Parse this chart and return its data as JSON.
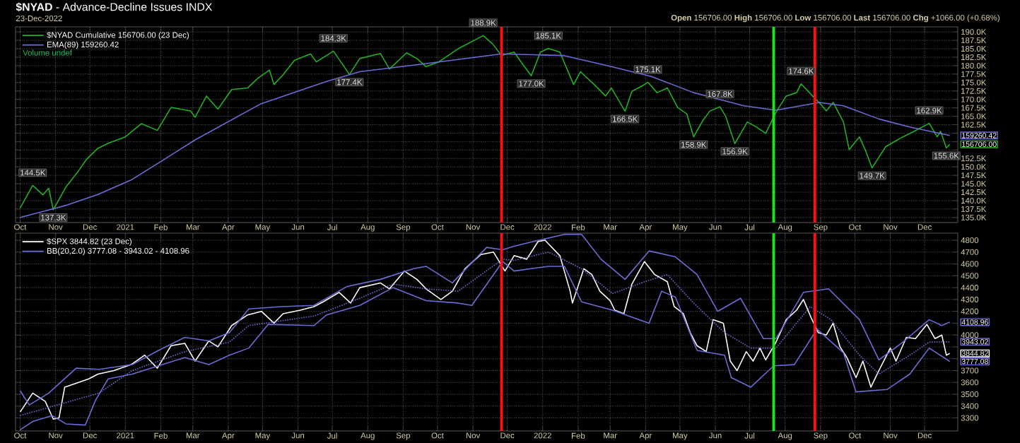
{
  "chart_data": [
    {
      "type": "line",
      "title": "**$NYAD** - Advance-Decline Issues INDX",
      "subtitle": "23-Dec-2022",
      "xlim": [
        "2020-09-27",
        "2022-12-30"
      ],
      "xticks": [
        {
          "value": "2020-10-01",
          "label": "Oct"
        },
        {
          "value": "2020-11-01",
          "label": "Nov"
        },
        {
          "value": "2020-12-01",
          "label": "Dec"
        },
        {
          "value": "2021-01-01",
          "label": "2021"
        },
        {
          "value": "2021-02-01",
          "label": "Feb"
        },
        {
          "value": "2021-03-01",
          "label": "Mar"
        },
        {
          "value": "2021-04-01",
          "label": "Apr"
        },
        {
          "value": "2021-05-01",
          "label": "May"
        },
        {
          "value": "2021-06-01",
          "label": "Jun"
        },
        {
          "value": "2021-07-01",
          "label": "Jul"
        },
        {
          "value": "2021-08-01",
          "label": "Aug"
        },
        {
          "value": "2021-09-01",
          "label": "Sep"
        },
        {
          "value": "2021-10-01",
          "label": "Oct"
        },
        {
          "value": "2021-11-01",
          "label": "Nov"
        },
        {
          "value": "2021-12-01",
          "label": "Dec"
        },
        {
          "value": "2022-01-01",
          "label": "2022"
        },
        {
          "value": "2022-02-01",
          "label": "Feb"
        },
        {
          "value": "2022-03-01",
          "label": "Mar"
        },
        {
          "value": "2022-04-01",
          "label": "Apr"
        },
        {
          "value": "2022-05-01",
          "label": "May"
        },
        {
          "value": "2022-06-01",
          "label": "Jun"
        },
        {
          "value": "2022-07-01",
          "label": "Jul"
        },
        {
          "value": "2022-08-01",
          "label": "Aug"
        },
        {
          "value": "2022-09-01",
          "label": "Sep"
        },
        {
          "value": "2022-10-01",
          "label": "Oct"
        },
        {
          "value": "2022-11-01",
          "label": "Nov"
        },
        {
          "value": "2022-12-01",
          "label": "Dec"
        }
      ],
      "ylim": [
        133.5,
        191.5
      ],
      "yticks": [
        {
          "value": 135,
          "label": "135.0K"
        },
        {
          "value": 137.5,
          "label": "137.5K"
        },
        {
          "value": 140,
          "label": "140.0K"
        },
        {
          "value": 142.5,
          "label": "142.5K"
        },
        {
          "value": 145,
          "label": "145.0K"
        },
        {
          "value": 147.5,
          "label": "147.5K"
        },
        {
          "value": 150,
          "label": "150.0K"
        },
        {
          "value": 152.5,
          "label": "152.5K"
        },
        {
          "value": 155,
          "label": null
        },
        {
          "value": 157.5,
          "label": null
        },
        {
          "value": 160,
          "label": null
        },
        {
          "value": 162.5,
          "label": "162.5K"
        },
        {
          "value": 165,
          "label": "165.0K"
        },
        {
          "value": 167.5,
          "label": "167.5K"
        },
        {
          "value": 170,
          "label": "170.0K"
        },
        {
          "value": 172.5,
          "label": "172.5K"
        },
        {
          "value": 175,
          "label": "175.0K"
        },
        {
          "value": 177.5,
          "label": "177.5K"
        },
        {
          "value": 180,
          "label": "180.0K"
        },
        {
          "value": 182.5,
          "label": "182.5K"
        },
        {
          "value": 185,
          "label": "185.0K"
        },
        {
          "value": 187.5,
          "label": "187.5K"
        },
        {
          "value": 190,
          "label": "190.0K"
        }
      ],
      "grid": true,
      "legend": "top left",
      "series": [
        {
          "name": "$NYAD Cumulative 156706.00 (23 Dec)",
          "color": "#22b022",
          "x": [
            "2020-10-01",
            "2020-10-12",
            "2020-10-21",
            "2020-10-26",
            "2020-10-30",
            "2020-11-10",
            "2020-11-21",
            "2020-11-28",
            "2020-12-08",
            "2020-12-17",
            "2021-01-01",
            "2021-01-15",
            "2021-01-29",
            "2021-02-10",
            "2021-02-27",
            "2021-03-03",
            "2021-03-13",
            "2021-03-23",
            "2021-04-04",
            "2021-04-18",
            "2021-04-27",
            "2021-05-07",
            "2021-05-11",
            "2021-05-19",
            "2021-05-29",
            "2021-06-12",
            "2021-06-17",
            "2021-07-02",
            "2021-07-16",
            "2021-07-25",
            "2021-08-12",
            "2021-08-20",
            "2021-09-04",
            "2021-09-13",
            "2021-09-21",
            "2021-10-02",
            "2021-10-19",
            "2021-11-10",
            "2021-11-18",
            "2021-11-26",
            "2021-12-07",
            "2021-12-15",
            "2021-12-22",
            "2021-12-30",
            "2022-01-06",
            "2022-01-16",
            "2022-01-28",
            "2022-02-03",
            "2022-02-15",
            "2022-02-25",
            "2022-03-02",
            "2022-03-14",
            "2022-03-20",
            "2022-03-29",
            "2022-04-03",
            "2022-04-11",
            "2022-04-20",
            "2022-04-29",
            "2022-05-07",
            "2022-05-13",
            "2022-05-21",
            "2022-05-27",
            "2022-06-05",
            "2022-06-10",
            "2022-06-18",
            "2022-06-29",
            "2022-07-07",
            "2022-07-15",
            "2022-07-24",
            "2022-08-02",
            "2022-08-11",
            "2022-08-15",
            "2022-08-25",
            "2022-09-01",
            "2022-09-06",
            "2022-09-12",
            "2022-09-21",
            "2022-09-26",
            "2022-10-05",
            "2022-10-10",
            "2022-10-16",
            "2022-10-28",
            "2022-11-12",
            "2022-11-21",
            "2022-12-05",
            "2022-12-12",
            "2022-12-15",
            "2022-12-20",
            "2022-12-23"
          ],
          "values": [
            137.8,
            144.5,
            141.7,
            143.7,
            137.3,
            144.0,
            148.8,
            152.2,
            155.5,
            157.0,
            158.9,
            162.8,
            160.8,
            167.6,
            166.6,
            164.7,
            171.0,
            167.1,
            172.9,
            173.4,
            176.3,
            178.7,
            174.4,
            177.3,
            181.6,
            183.5,
            181.1,
            184.3,
            177.4,
            182.1,
            183.6,
            179.0,
            183.8,
            182.1,
            179.7,
            181.1,
            185.0,
            188.9,
            186.5,
            183.0,
            184.0,
            180.2,
            177.0,
            184.0,
            185.1,
            184.0,
            174.4,
            178.2,
            174.4,
            171.0,
            173.4,
            166.5,
            172.4,
            174.0,
            175.1,
            172.0,
            173.4,
            167.6,
            165.7,
            158.9,
            163.7,
            166.5,
            167.8,
            165.0,
            156.9,
            163.3,
            161.8,
            159.9,
            166.2,
            171.0,
            172.0,
            174.6,
            171.0,
            168.6,
            166.6,
            169.1,
            163.3,
            155.1,
            158.9,
            155.1,
            149.7,
            156.0,
            158.9,
            160.4,
            162.9,
            158.9,
            160.5,
            155.6,
            156.7
          ]
        },
        {
          "name": "EMA(89) 159260.42",
          "color": "#6c6cd8",
          "x": [
            "2020-10-01",
            "2020-10-30",
            "2020-11-10",
            "2020-12-08",
            "2021-01-06",
            "2021-02-04",
            "2021-03-03",
            "2021-04-29",
            "2021-06-26",
            "2021-07-25",
            "2021-09-21",
            "2021-11-26",
            "2022-01-19",
            "2022-03-02",
            "2022-04-06",
            "2022-05-13",
            "2022-06-26",
            "2022-07-24",
            "2022-08-31",
            "2022-09-21",
            "2022-10-22",
            "2022-11-18",
            "2022-12-23"
          ],
          "values": [
            135.0,
            137.6,
            138.6,
            141.8,
            146.1,
            152.2,
            158.0,
            168.6,
            175.3,
            178.2,
            180.6,
            183.5,
            183.0,
            179.7,
            176.8,
            172.0,
            168.1,
            166.8,
            169.1,
            168.1,
            164.2,
            161.8,
            159.3
          ]
        }
      ],
      "ref_lines": [
        {
          "axis": "x",
          "value": "2021-11-26",
          "color": "#ff1010"
        },
        {
          "axis": "x",
          "value": "2022-07-22",
          "color": "#20e020"
        },
        {
          "axis": "x",
          "value": "2022-08-27",
          "color": "#ff1010"
        }
      ],
      "annotations": [
        "**Open** 156706.00  **High** 156706.00  **Low** 156706.00  **Last** 156706.00  **Chg** +1066.00 (+0.68%)",
        "Volume undef",
        {
          "text": "144.5K",
          "x": "2020-10-12",
          "y": 144.5
        },
        {
          "text": "137.3K",
          "x": "2020-10-30",
          "y": 137.3
        },
        {
          "text": "184.3K",
          "x": "2021-07-02",
          "y": 184.3
        },
        {
          "text": "177.4K",
          "x": "2021-07-16",
          "y": 177.4
        },
        {
          "text": "188.9K",
          "x": "2021-11-10",
          "y": 188.9
        },
        {
          "text": "177.0K",
          "x": "2021-12-22",
          "y": 177.0
        },
        {
          "text": "185.1K",
          "x": "2022-01-06",
          "y": 185.1
        },
        {
          "text": "166.5K",
          "x": "2022-03-14",
          "y": 166.5
        },
        {
          "text": "175.1K",
          "x": "2022-04-03",
          "y": 175.1
        },
        {
          "text": "158.9K",
          "x": "2022-05-13",
          "y": 158.9
        },
        {
          "text": "167.8K",
          "x": "2022-06-05",
          "y": 167.8
        },
        {
          "text": "156.9K",
          "x": "2022-06-18",
          "y": 156.9
        },
        {
          "text": "174.6K",
          "x": "2022-08-15",
          "y": 174.6
        },
        {
          "text": "149.7K",
          "x": "2022-10-16",
          "y": 149.7
        },
        {
          "text": "162.9K",
          "x": "2022-12-05",
          "y": 162.9
        },
        {
          "text": "155.6K",
          "x": "2022-12-20",
          "y": 155.6
        },
        {
          "text": "159260.42",
          "x": "2022-12-23",
          "y": 159.3
        },
        {
          "text": "156706.00",
          "x": "2022-12-23",
          "y": 156.7
        }
      ]
    },
    {
      "type": "line",
      "xlim": [
        "2020-09-27",
        "2022-12-30"
      ],
      "xticks": [
        {
          "value": "2020-10-01",
          "label": "Oct"
        },
        {
          "value": "2020-11-01",
          "label": "Nov"
        },
        {
          "value": "2020-12-01",
          "label": "Dec"
        },
        {
          "value": "2021-01-01",
          "label": "2021"
        },
        {
          "value": "2021-02-01",
          "label": "Feb"
        },
        {
          "value": "2021-03-01",
          "label": "Mar"
        },
        {
          "value": "2021-04-01",
          "label": "Apr"
        },
        {
          "value": "2021-05-01",
          "label": "May"
        },
        {
          "value": "2021-06-01",
          "label": "Jun"
        },
        {
          "value": "2021-07-01",
          "label": "Jul"
        },
        {
          "value": "2021-08-01",
          "label": "Aug"
        },
        {
          "value": "2021-09-01",
          "label": "Sep"
        },
        {
          "value": "2021-10-01",
          "label": "Oct"
        },
        {
          "value": "2021-11-01",
          "label": "Nov"
        },
        {
          "value": "2021-12-01",
          "label": "Dec"
        },
        {
          "value": "2022-01-01",
          "label": "2022"
        },
        {
          "value": "2022-02-01",
          "label": "Feb"
        },
        {
          "value": "2022-03-01",
          "label": "Mar"
        },
        {
          "value": "2022-04-01",
          "label": "Apr"
        },
        {
          "value": "2022-05-01",
          "label": "May"
        },
        {
          "value": "2022-06-01",
          "label": "Jun"
        },
        {
          "value": "2022-07-01",
          "label": "Jul"
        },
        {
          "value": "2022-08-01",
          "label": "Aug"
        },
        {
          "value": "2022-09-01",
          "label": "Sep"
        },
        {
          "value": "2022-10-01",
          "label": "Oct"
        },
        {
          "value": "2022-11-01",
          "label": "Nov"
        },
        {
          "value": "2022-12-01",
          "label": "Dec"
        }
      ],
      "ylim": [
        3190,
        4860
      ],
      "yticks": [
        3300,
        3400,
        3500,
        3600,
        3700,
        {
          "value": 3800,
          "label": null
        },
        {
          "value": 3900,
          "label": null
        },
        4000,
        {
          "value": 4100,
          "label": null
        },
        4200,
        4300,
        4400,
        4500,
        4600,
        4700,
        4800
      ],
      "grid": true,
      "legend": "top left",
      "series": [
        {
          "name": "$SPX 3844.82 (23 Dec)",
          "color": "#ffffff",
          "x": [
            "2020-10-01",
            "2020-10-12",
            "2020-10-23",
            "2020-10-30",
            "2020-11-04",
            "2020-11-09",
            "2020-11-18",
            "2020-11-30",
            "2020-12-08",
            "2020-12-22",
            "2021-01-06",
            "2021-01-18",
            "2021-01-29",
            "2021-02-10",
            "2021-02-22",
            "2021-03-03",
            "2021-03-15",
            "2021-03-23",
            "2021-04-04",
            "2021-04-18",
            "2021-04-30",
            "2021-05-11",
            "2021-05-19",
            "2021-06-03",
            "2021-06-15",
            "2021-06-23",
            "2021-07-07",
            "2021-07-17",
            "2021-07-25",
            "2021-08-12",
            "2021-08-20",
            "2021-09-02",
            "2021-09-13",
            "2021-09-21",
            "2021-10-04",
            "2021-10-14",
            "2021-10-25",
            "2021-11-08",
            "2021-11-19",
            "2021-11-29",
            "2021-12-07",
            "2021-12-18",
            "2021-12-28",
            "2022-01-03",
            "2022-01-16",
            "2022-01-25",
            "2022-01-27",
            "2022-02-06",
            "2022-02-13",
            "2022-02-20",
            "2022-03-01",
            "2022-03-05",
            "2022-03-13",
            "2022-03-20",
            "2022-03-31",
            "2022-04-09",
            "2022-04-20",
            "2022-04-26",
            "2022-05-04",
            "2022-05-10",
            "2022-05-16",
            "2022-05-24",
            "2022-05-30",
            "2022-06-08",
            "2022-06-14",
            "2022-06-20",
            "2022-06-28",
            "2022-07-04",
            "2022-07-10",
            "2022-07-15",
            "2022-07-24",
            "2022-08-02",
            "2022-08-11",
            "2022-08-17",
            "2022-08-24",
            "2022-08-30",
            "2022-09-06",
            "2022-09-12",
            "2022-09-18",
            "2022-09-24",
            "2022-10-02",
            "2022-10-08",
            "2022-10-15",
            "2022-10-22",
            "2022-11-01",
            "2022-11-06",
            "2022-11-15",
            "2022-11-23",
            "2022-12-03",
            "2022-12-10",
            "2022-12-16",
            "2022-12-20",
            "2022-12-23"
          ],
          "values": [
            3350,
            3510,
            3440,
            3290,
            3300,
            3560,
            3590,
            3630,
            3670,
            3700,
            3750,
            3830,
            3720,
            3910,
            3930,
            3780,
            3950,
            3900,
            4080,
            4170,
            4200,
            4100,
            4180,
            4210,
            4240,
            4280,
            4360,
            4270,
            4400,
            4440,
            4390,
            4540,
            4470,
            4390,
            4300,
            4370,
            4560,
            4680,
            4700,
            4540,
            4670,
            4640,
            4790,
            4800,
            4670,
            4370,
            4270,
            4560,
            4510,
            4370,
            4290,
            4210,
            4180,
            4430,
            4620,
            4510,
            4450,
            4240,
            4180,
            4020,
            3910,
            3860,
            4130,
            4100,
            3780,
            3700,
            3860,
            3780,
            3890,
            3790,
            3940,
            4130,
            4210,
            4300,
            4140,
            4020,
            4000,
            4100,
            3900,
            3810,
            3640,
            3780,
            3560,
            3700,
            3890,
            3780,
            3980,
            3970,
            4090,
            3970,
            4000,
            3830,
            3845
          ]
        },
        {
          "name": "BB(20,2.0) 3777.08 - 3943.02 - 4108.96",
          "color": "#6c6cd8",
          "x": [
            "2020-10-01",
            "2020-10-09",
            "2020-10-26",
            "2020-11-19",
            "2020-12-09",
            "2021-01-07",
            "2021-01-30",
            "2021-02-22",
            "2021-03-15",
            "2021-04-02",
            "2021-04-19",
            "2021-05-17",
            "2021-06-15",
            "2021-07-14",
            "2021-08-12",
            "2021-09-10",
            "2021-09-21",
            "2021-10-14",
            "2021-11-13",
            "2021-11-27",
            "2021-12-07",
            "2021-12-24",
            "2022-01-20",
            "2022-02-04",
            "2022-02-21",
            "2022-03-14",
            "2022-04-04",
            "2022-04-27",
            "2022-05-16",
            "2022-06-03",
            "2022-06-23",
            "2022-07-13",
            "2022-07-24",
            "2022-08-17",
            "2022-09-08",
            "2022-10-05",
            "2022-10-22",
            "2022-11-12",
            "2022-12-05",
            "2022-12-16",
            "2022-12-23"
          ],
          "values": [
            3530,
            3410,
            3510,
            3720,
            3710,
            3750,
            3870,
            3980,
            3950,
            4020,
            4220,
            4240,
            4250,
            4410,
            4470,
            4560,
            4580,
            4440,
            4740,
            4720,
            4750,
            4790,
            4850,
            4850,
            4640,
            4470,
            4710,
            4660,
            4510,
            4200,
            4310,
            3970,
            3970,
            4360,
            4390,
            4130,
            3790,
            3940,
            4130,
            4080,
            4109
          ]
        },
        {
          "color": "#6c6cd8",
          "line_style": "dotted",
          "x": [
            "2020-10-01",
            "2020-11-10",
            "2020-12-09",
            "2021-01-07",
            "2021-02-22",
            "2021-04-02",
            "2021-04-19",
            "2021-06-15",
            "2021-07-25",
            "2021-08-23",
            "2021-09-21",
            "2021-10-19",
            "2021-11-27",
            "2021-12-07",
            "2022-01-06",
            "2022-02-04",
            "2022-03-03",
            "2022-03-31",
            "2022-04-20",
            "2022-05-13",
            "2022-06-09",
            "2022-07-02",
            "2022-07-24",
            "2022-08-23",
            "2022-09-10",
            "2022-10-05",
            "2022-10-22",
            "2022-11-18",
            "2022-12-05",
            "2022-12-23"
          ],
          "values": [
            3320,
            3430,
            3510,
            3700,
            3860,
            3940,
            4080,
            4160,
            4310,
            4430,
            4390,
            4370,
            4640,
            4630,
            4700,
            4560,
            4350,
            4450,
            4510,
            4270,
            4020,
            3890,
            3890,
            4240,
            4130,
            3830,
            3670,
            3830,
            3940,
            3943
          ]
        },
        {
          "color": "#6c6cd8",
          "x": [
            "2020-10-01",
            "2020-10-12",
            "2020-10-29",
            "2020-11-10",
            "2020-11-27",
            "2020-12-06",
            "2020-12-17",
            "2021-01-07",
            "2021-02-22",
            "2021-03-15",
            "2021-04-02",
            "2021-04-19",
            "2021-05-06",
            "2021-06-15",
            "2021-06-26",
            "2021-07-25",
            "2021-08-23",
            "2021-09-21",
            "2021-10-19",
            "2021-10-31",
            "2021-11-27",
            "2021-12-07",
            "2022-01-06",
            "2022-01-20",
            "2022-02-04",
            "2022-03-03",
            "2022-04-04",
            "2022-04-15",
            "2022-04-27",
            "2022-05-16",
            "2022-06-09",
            "2022-06-15",
            "2022-07-02",
            "2022-07-22",
            "2022-08-09",
            "2022-08-29",
            "2022-09-21",
            "2022-10-02",
            "2022-10-29",
            "2022-11-18",
            "2022-12-05",
            "2022-12-23"
          ],
          "values": [
            3200,
            3270,
            3320,
            3250,
            3240,
            3450,
            3630,
            3670,
            3810,
            3750,
            3830,
            3890,
            4090,
            4080,
            4170,
            4250,
            4400,
            4290,
            4270,
            4250,
            4620,
            4540,
            4580,
            4580,
            4280,
            4210,
            4100,
            4370,
            4320,
            3870,
            3830,
            3640,
            3560,
            3740,
            3750,
            4050,
            3850,
            3520,
            3540,
            3670,
            3890,
            3777
          ]
        }
      ],
      "ref_lines": [
        {
          "axis": "x",
          "value": "2021-11-26",
          "color": "#ff1010"
        },
        {
          "axis": "x",
          "value": "2022-07-22",
          "color": "#20e020"
        },
        {
          "axis": "x",
          "value": "2022-08-27",
          "color": "#ff1010"
        }
      ],
      "annotations": [
        {
          "text": "4108.96",
          "x": "2022-12-23",
          "y": 4109
        },
        {
          "text": "3943.02",
          "x": "2022-12-23",
          "y": 3943
        },
        {
          "text": "3844.82",
          "x": "2022-12-23",
          "y": 3845
        },
        {
          "text": "3777.08",
          "x": "2022-12-23",
          "y": 3777
        }
      ]
    }
  ]
}
